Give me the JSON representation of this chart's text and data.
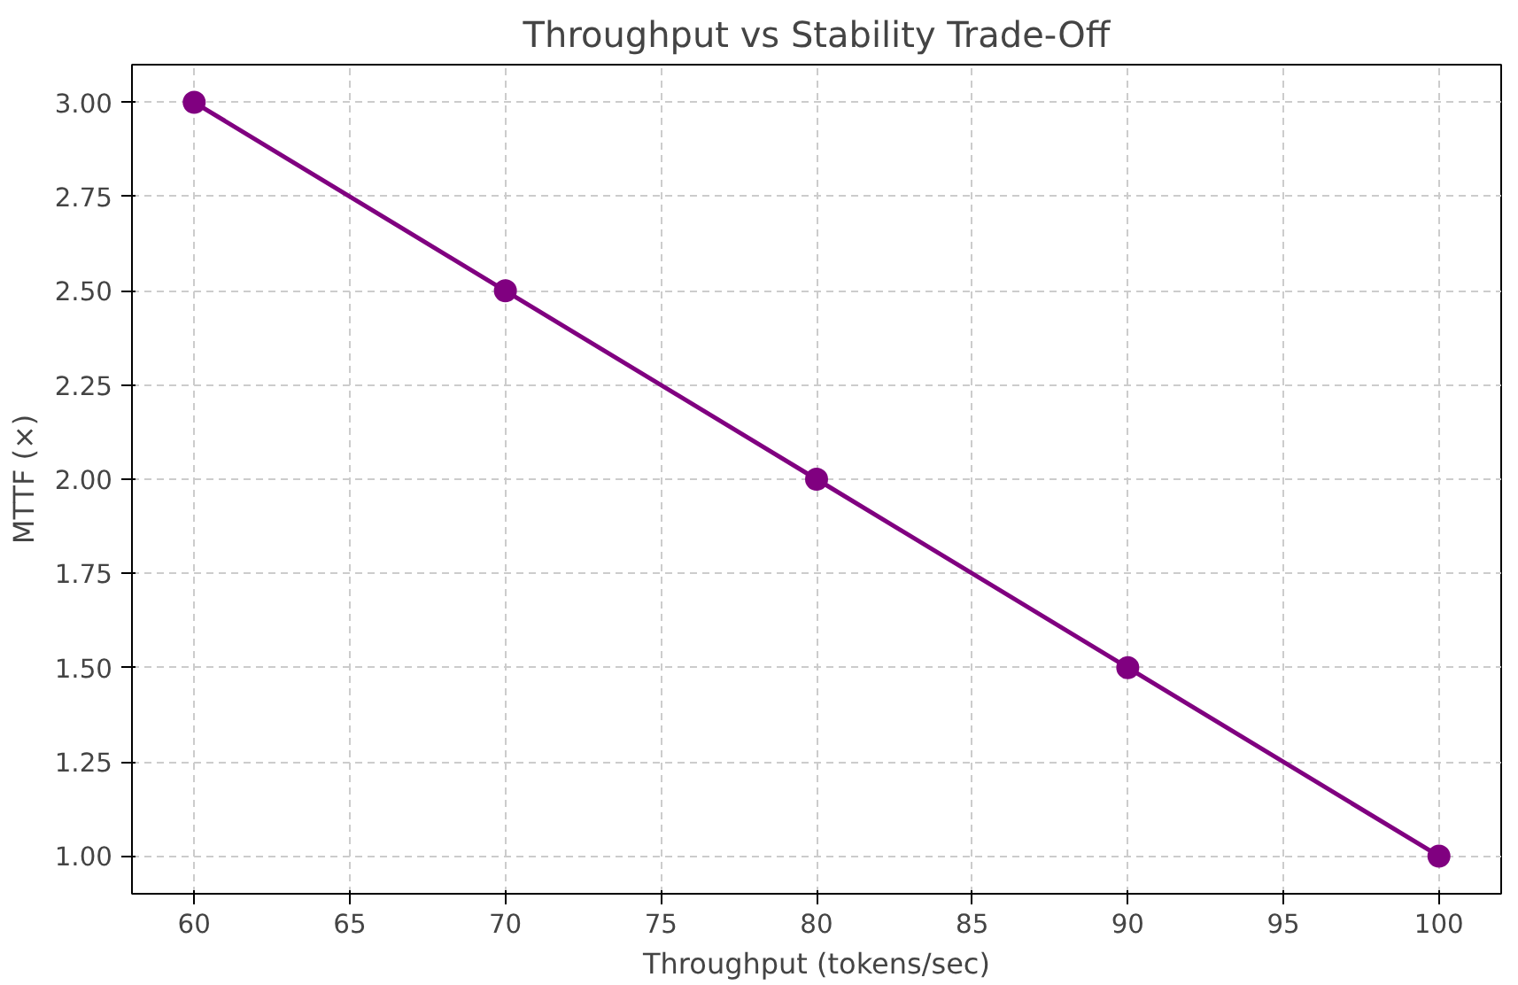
{
  "chart_data": {
    "type": "line",
    "title": "Throughput vs Stability Trade-Off",
    "xlabel": "Throughput (tokens/sec)",
    "ylabel": "MTTF (×)",
    "x": [
      60,
      70,
      80,
      90,
      100
    ],
    "series": [
      {
        "color": "#800080",
        "values": [
          3.0,
          2.5,
          2.0,
          1.5,
          1.0
        ]
      }
    ],
    "xlim": [
      58,
      102
    ],
    "ylim": [
      0.9,
      3.1
    ],
    "xticks": [
      60,
      65,
      70,
      75,
      80,
      85,
      90,
      95,
      100
    ],
    "yticks": [
      {
        "value": 1,
        "label": "1.00"
      },
      {
        "value": 1.25,
        "label": "1.25"
      },
      {
        "value": 1.5,
        "label": "1.50"
      },
      {
        "value": 1.75,
        "label": "1.75"
      },
      {
        "value": 2,
        "label": "2.00"
      },
      {
        "value": 2.25,
        "label": "2.25"
      },
      {
        "value": 2.5,
        "label": "2.50"
      },
      {
        "value": 2.75,
        "label": "2.75"
      },
      {
        "value": 3,
        "label": "3.00"
      }
    ],
    "grid": true,
    "marker": "circle",
    "line_style": "solid"
  }
}
